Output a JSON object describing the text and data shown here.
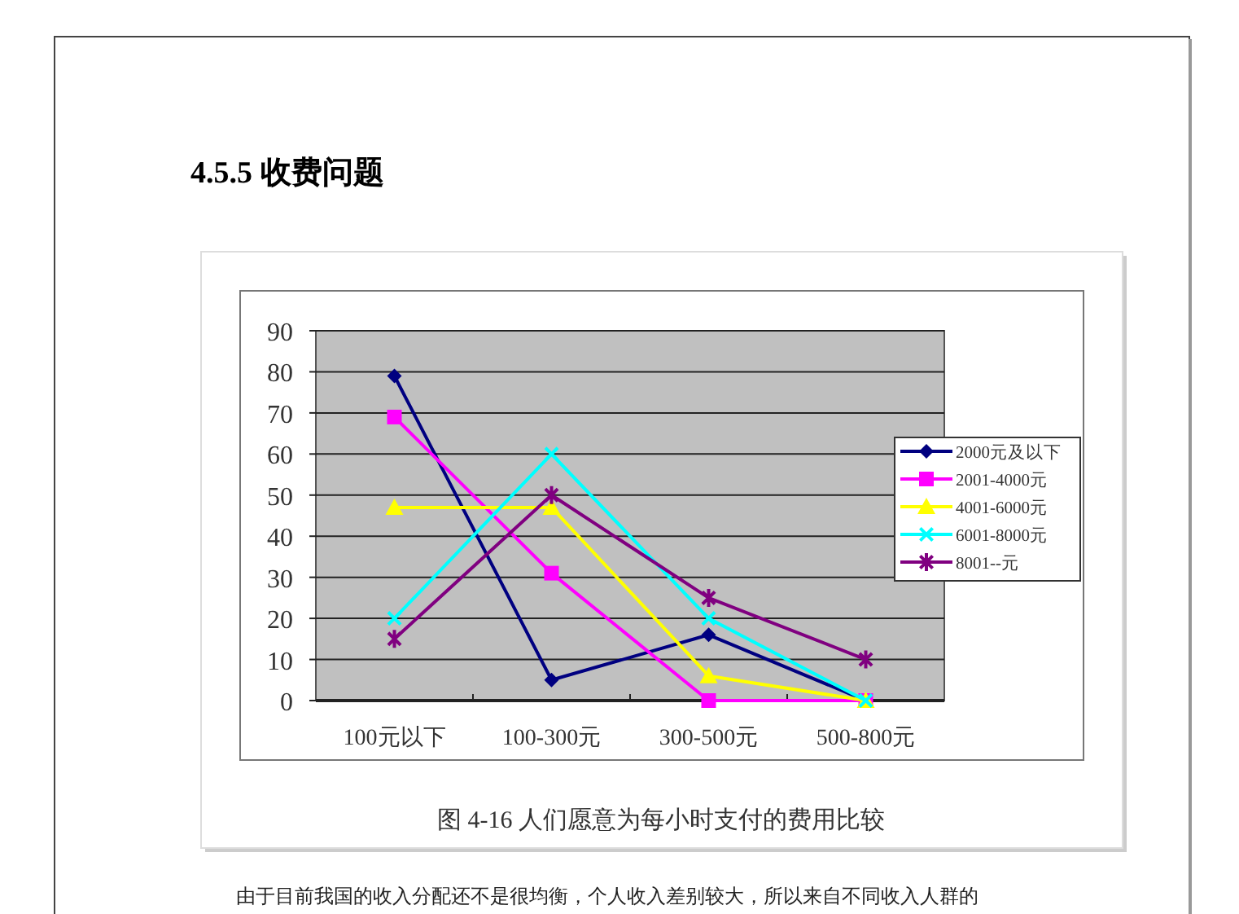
{
  "chart_data": {
    "type": "line",
    "title": "4.5.5 收费问题",
    "annotations": [
      "图 4-16 人们愿意为每小时支付的费用比较",
      "由于目前我国的收入分配还不是很均衡，个人收入差别较大，所以来自不同收入人群的"
    ],
    "categories": [
      "100元以下",
      "100-300元",
      "300-500元",
      "500-800元"
    ],
    "series": [
      {
        "name": "2000元及以下",
        "color": "#000080",
        "marker": "diamond",
        "values": [
          79,
          5,
          16,
          0
        ]
      },
      {
        "name": "2001-4000元",
        "color": "#ff00ff",
        "marker": "square",
        "values": [
          69,
          31,
          0,
          0
        ]
      },
      {
        "name": "4001-6000元",
        "color": "#ffff00",
        "marker": "triangle",
        "values": [
          47,
          47,
          6,
          0
        ]
      },
      {
        "name": "6001-8000元",
        "color": "#00ffff",
        "marker": "cross",
        "values": [
          20,
          60,
          20,
          0
        ]
      },
      {
        "name": "8001--元",
        "color": "#800080",
        "marker": "star",
        "values": [
          15,
          50,
          25,
          10
        ]
      }
    ],
    "ylim": [
      0,
      90
    ],
    "yticks": [
      0,
      10,
      20,
      30,
      40,
      50,
      60,
      70,
      80,
      90
    ],
    "grid": "y",
    "legend": "right",
    "line_style": "solid"
  }
}
